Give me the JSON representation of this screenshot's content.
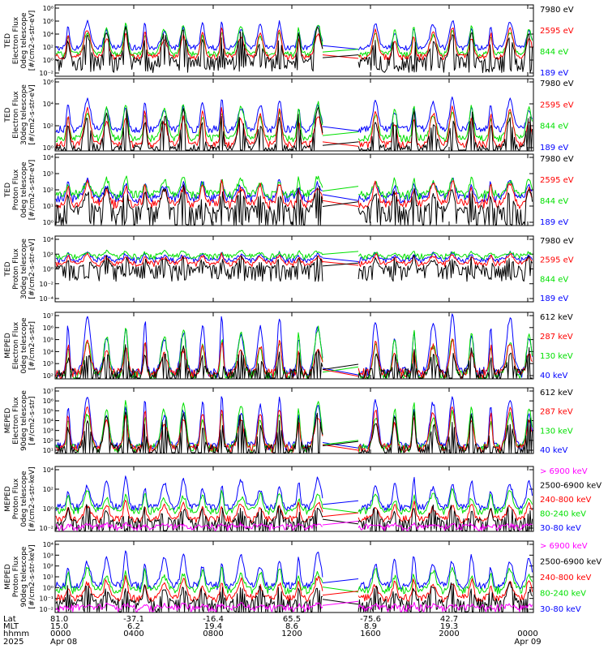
{
  "colors": {
    "black": "#000000",
    "red": "#ff0000",
    "green": "#00e000",
    "blue": "#0000ff",
    "magenta": "#ff00ff"
  },
  "chart_data": [
    {
      "type": "line",
      "ylabel": [
        "TED",
        "Electron Flux",
        "0deg telescope",
        "[#/cm2-s-str-eV]"
      ],
      "yticks": [
        "10⁸",
        "10⁶",
        "10⁴",
        "10²",
        "10⁰",
        "10⁻²"
      ],
      "ylim": [
        0.01,
        100000000
      ],
      "series": [
        {
          "name": "7980 eV",
          "color": "black",
          "base": 0.3,
          "peak": 5
        },
        {
          "name": "2595 eV",
          "color": "red",
          "base": 0.7,
          "peak": 5
        },
        {
          "name": "844 eV",
          "color": "green",
          "base": 1.1,
          "peak": 5.5
        },
        {
          "name": "189 eV",
          "color": "blue",
          "base": 2.0,
          "peak": 6
        }
      ]
    },
    {
      "type": "line",
      "ylabel": [
        "TED",
        "Electron Flux",
        "30deg telescope",
        "[#/cm2-s-str-eV]"
      ],
      "yticks": [
        "10⁶",
        "10⁴",
        "10²",
        "10⁰"
      ],
      "ylim": [
        1,
        100000000
      ],
      "series": [
        {
          "name": "7980 eV",
          "color": "black",
          "base": 0.3,
          "peak": 5
        },
        {
          "name": "2595 eV",
          "color": "red",
          "base": 0.7,
          "peak": 5
        },
        {
          "name": "844 eV",
          "color": "green",
          "base": 1.4,
          "peak": 5.5
        },
        {
          "name": "189 eV",
          "color": "blue",
          "base": 2.4,
          "peak": 6
        }
      ]
    },
    {
      "type": "line",
      "ylabel": [
        "TED",
        "Proton Flux",
        "0deg telescope",
        "[#/cm2-s-str-eV]"
      ],
      "yticks": [
        "10⁴",
        "10³",
        "10²",
        "10¹",
        "10⁰"
      ],
      "ylim": [
        0.1,
        100000
      ],
      "series": [
        {
          "name": "7980 eV",
          "color": "black",
          "base": 0.3,
          "peak": 2.5
        },
        {
          "name": "2595 eV",
          "color": "red",
          "base": 0.8,
          "peak": 2.8
        },
        {
          "name": "844 eV",
          "color": "green",
          "base": 1.6,
          "peak": 3.2
        },
        {
          "name": "189 eV",
          "color": "blue",
          "base": 1.3,
          "peak": 3.0
        }
      ]
    },
    {
      "type": "line",
      "ylabel": [
        "TED",
        "Proton Flux",
        "30deg telescope",
        "[#/cm2-s-str-eV]"
      ],
      "yticks": [
        "10⁴",
        "10²",
        "10⁰",
        "10⁻²",
        "10⁻⁴"
      ],
      "ylim": [
        0.0001,
        100000
      ],
      "series": [
        {
          "name": "7980 eV",
          "color": "black",
          "base": 0.6,
          "peak": 2.5
        },
        {
          "name": "2595 eV",
          "color": "red",
          "base": 1.2,
          "peak": 2.6
        },
        {
          "name": "844 eV",
          "color": "green",
          "base": 2.2,
          "peak": 3.0
        },
        {
          "name": "189 eV",
          "color": "blue",
          "base": 1.7,
          "peak": 2.8
        }
      ]
    },
    {
      "type": "line",
      "ylabel": [
        "MEPED",
        "Electron Flux",
        "0deg telescope",
        "[#/cm2-s-str]"
      ],
      "yticks": [
        "10⁷",
        "10⁶",
        "10⁵",
        "10⁴",
        "10³",
        "10²"
      ],
      "ylim": [
        100,
        10000000
      ],
      "series": [
        {
          "name": "612 keV",
          "color": "black",
          "base": 2.4,
          "peak": 4.5
        },
        {
          "name": "287 keV",
          "color": "red",
          "base": 2.4,
          "peak": 5
        },
        {
          "name": "130 keV",
          "color": "green",
          "base": 2.2,
          "peak": 6
        },
        {
          "name": "40 keV",
          "color": "blue",
          "base": 2.5,
          "peak": 7
        }
      ]
    },
    {
      "type": "line",
      "ylabel": [
        "MEPED",
        "Electron Flux",
        "90deg telescope",
        "[#/cm2-s-str]"
      ],
      "yticks": [
        "10⁷",
        "10⁶",
        "10⁵",
        "10⁴",
        "10³",
        "10²",
        "10¹"
      ],
      "ylim": [
        10,
        10000000
      ],
      "series": [
        {
          "name": "612 keV",
          "color": "black",
          "base": 1.4,
          "peak": 5
        },
        {
          "name": "287 keV",
          "color": "red",
          "base": 1.5,
          "peak": 5.5
        },
        {
          "name": "130 keV",
          "color": "green",
          "base": 1.5,
          "peak": 6
        },
        {
          "name": "40 keV",
          "color": "blue",
          "base": 1.7,
          "peak": 6.5
        }
      ]
    },
    {
      "type": "line",
      "ylabel": [
        "MEPED",
        "Proton Flux",
        "0deg telescope",
        "[#/cm2-s-str-keV]"
      ],
      "yticks": [
        "10⁴",
        "10²",
        "10⁰",
        "10⁻²"
      ],
      "ylim": [
        0.01,
        100000
      ],
      "series": [
        {
          "name": "> 6900 keV",
          "color": "magenta",
          "base": -1.6,
          "peak": -1.2
        },
        {
          "name": "2500-6900 keV",
          "color": "black",
          "base": -1.0,
          "peak": 1.0
        },
        {
          "name": "240-800 keV",
          "color": "red",
          "base": -0.7,
          "peak": 1.3
        },
        {
          "name": "80-240 keV",
          "color": "green",
          "base": 0.2,
          "peak": 2.5
        },
        {
          "name": "30-80 keV",
          "color": "blue",
          "base": 0.6,
          "peak": 4
        }
      ]
    },
    {
      "type": "line",
      "ylabel": [
        "MEPED",
        "Proton Flux",
        "90deg telescope",
        "[#/cm2-s-str-keV]"
      ],
      "yticks": [
        "10⁴",
        "10³",
        "10²",
        "10¹",
        "10⁰",
        "10⁻¹",
        "10⁻²"
      ],
      "ylim": [
        0.01,
        100000
      ],
      "series": [
        {
          "name": "> 6900 keV",
          "color": "magenta",
          "base": -1.6,
          "peak": -1.2
        },
        {
          "name": "2500-6900 keV",
          "color": "black",
          "base": -1.0,
          "peak": 1.0
        },
        {
          "name": "240-800 keV",
          "color": "red",
          "base": -0.6,
          "peak": 1.5
        },
        {
          "name": "80-240 keV",
          "color": "green",
          "base": 0.2,
          "peak": 2.5
        },
        {
          "name": "30-80 keV",
          "color": "blue",
          "base": 0.6,
          "peak": 4
        }
      ]
    }
  ],
  "x_axis": {
    "row_labels": [
      "Lat",
      "MLT",
      "hhmm",
      "2025"
    ],
    "ticks": [
      {
        "hhmm": "0000",
        "lat": "81.0",
        "mlt": "15.0",
        "date": "Apr 08"
      },
      {
        "hhmm": "0400",
        "lat": "-37.1",
        "mlt": "6.2",
        "date": ""
      },
      {
        "hhmm": "0800",
        "lat": "-16.4",
        "mlt": "19.4",
        "date": ""
      },
      {
        "hhmm": "1200",
        "lat": "65.5",
        "mlt": "8.6",
        "date": ""
      },
      {
        "hhmm": "1600",
        "lat": "-75.6",
        "mlt": "8.9",
        "date": ""
      },
      {
        "hhmm": "2000",
        "lat": "42.7",
        "mlt": "19.3",
        "date": ""
      },
      {
        "hhmm": "0000",
        "lat": "",
        "mlt": "",
        "date": "Apr 09"
      }
    ],
    "data_gap": [
      "~1330",
      "~1535"
    ]
  }
}
